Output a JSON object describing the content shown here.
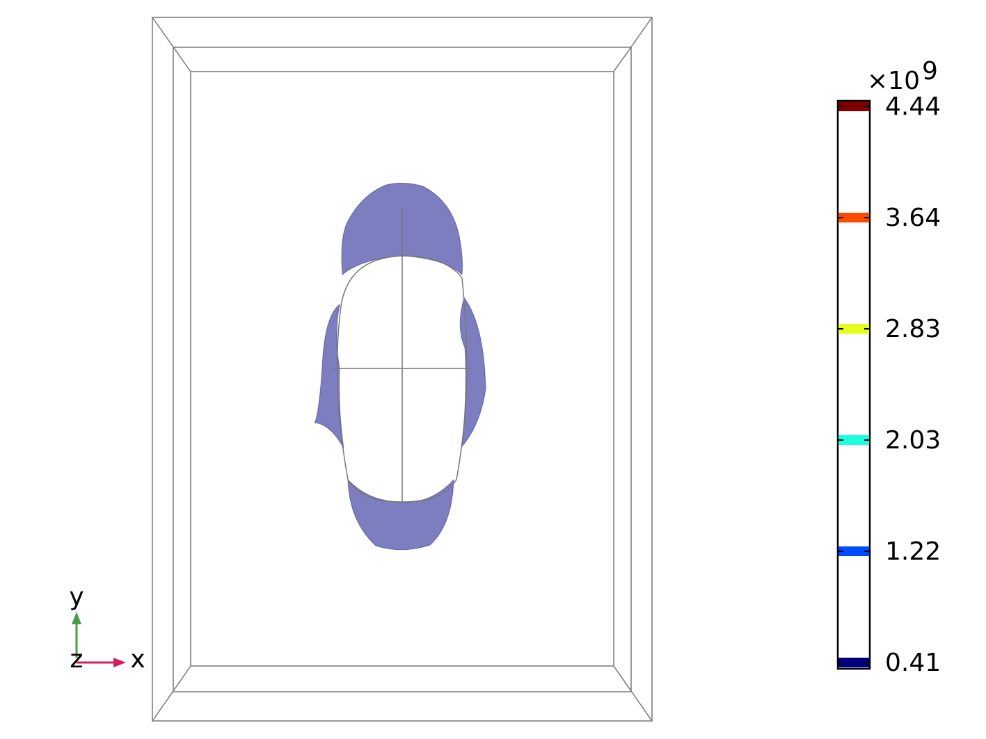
{
  "colorbar": {
    "multiplier": "×10",
    "exponent": "9",
    "levels": [
      {
        "label": "4.44",
        "color": "#7f0000"
      },
      {
        "label": "3.64",
        "color": "#ff4a00"
      },
      {
        "label": "2.83",
        "color": "#e3ff1b"
      },
      {
        "label": "2.03",
        "color": "#1bffe3"
      },
      {
        "label": "1.22",
        "color": "#004aff"
      },
      {
        "label": "0.41",
        "color": "#00007f"
      }
    ]
  },
  "axes": {
    "y": "y",
    "z": "z",
    "x": "x"
  }
}
